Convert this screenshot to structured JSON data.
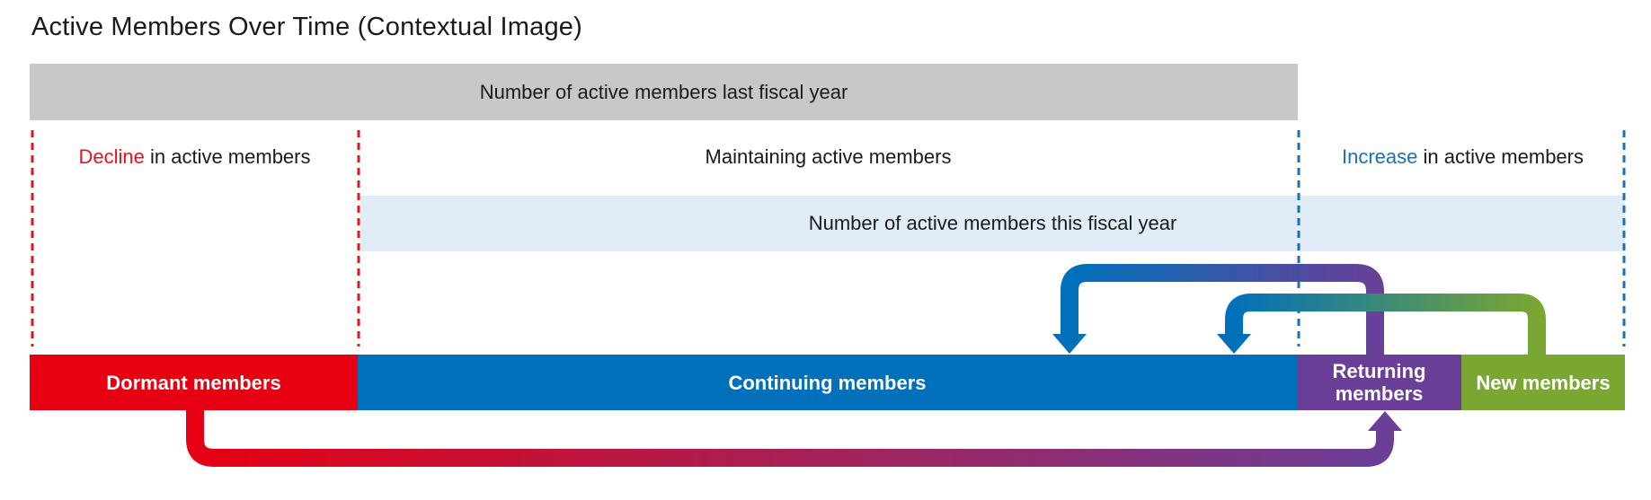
{
  "title": "Active Members Over Time (Contextual Image)",
  "bands": {
    "last_year": "Number of active members last fiscal year",
    "this_year": "Number of active members this fiscal year"
  },
  "sections": {
    "decline": {
      "highlight": "Decline",
      "rest": " in active members"
    },
    "maintain": {
      "label": "Maintaining active members"
    },
    "increase": {
      "highlight": "Increase",
      "rest": " in active members"
    }
  },
  "segments": {
    "dormant": "Dormant members",
    "continuing": "Continuing members",
    "returning": "Returning members",
    "new": "New members"
  },
  "colors": {
    "red": "#e60012",
    "blue": "#0070bb",
    "purple": "#6b3f98",
    "green": "#7aa632",
    "gray": "#c8c8c8",
    "light_blue": "#e0edf8"
  }
}
